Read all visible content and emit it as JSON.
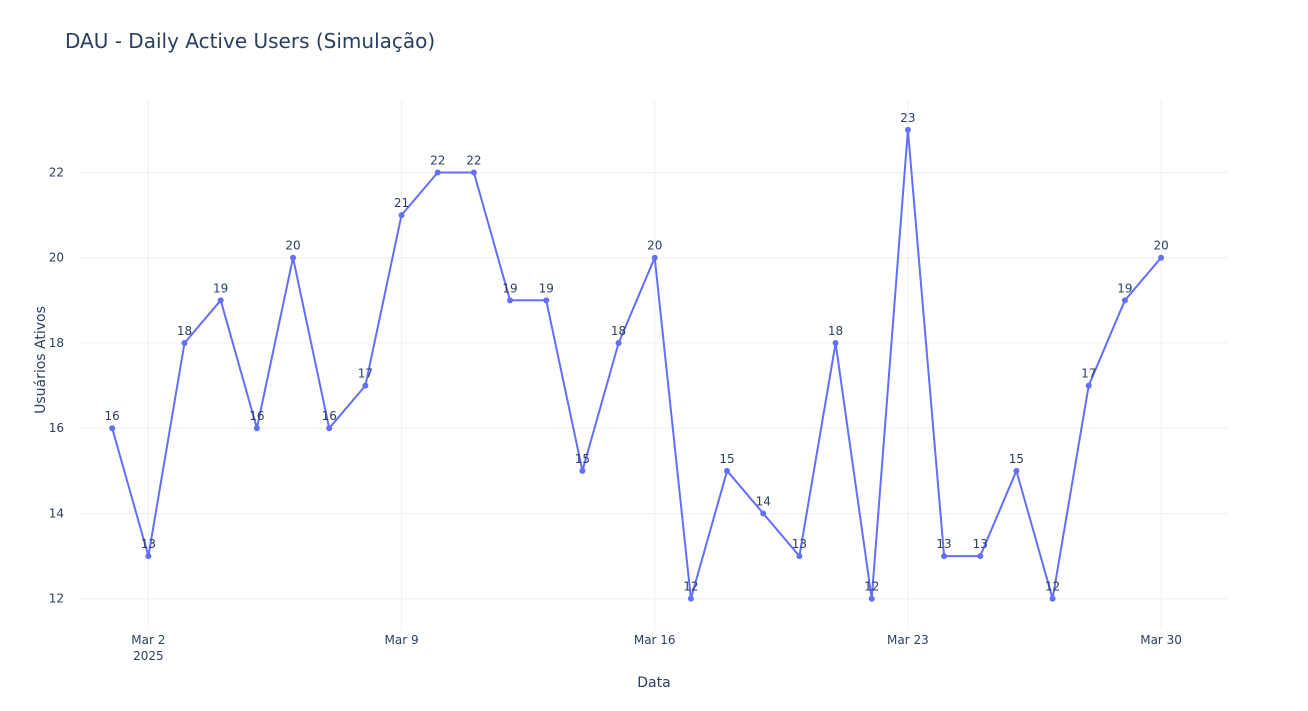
{
  "chart_data": {
    "type": "line",
    "title": "DAU - Daily Active Users (Simulação)",
    "xlabel": "Data",
    "ylabel": "Usuários Ativos",
    "x_start": "2025-03-01",
    "x_ticks": [
      {
        "date": "2025-03-02",
        "label": "Mar 2",
        "sublabel": "2025"
      },
      {
        "date": "2025-03-09",
        "label": "Mar 9",
        "sublabel": ""
      },
      {
        "date": "2025-03-16",
        "label": "Mar 16",
        "sublabel": ""
      },
      {
        "date": "2025-03-23",
        "label": "Mar 23",
        "sublabel": ""
      },
      {
        "date": "2025-03-30",
        "label": "Mar 30",
        "sublabel": ""
      }
    ],
    "y_ticks": [
      12,
      14,
      16,
      18,
      20,
      22
    ],
    "xlim": [
      "2025-02-28",
      "2025-03-31"
    ],
    "ylim": [
      11.5,
      23.7
    ],
    "grid": true,
    "line_color": "#636efa",
    "series": [
      {
        "x": [
          "2025-03-01",
          "2025-03-02",
          "2025-03-03",
          "2025-03-04",
          "2025-03-05",
          "2025-03-06",
          "2025-03-07",
          "2025-03-08",
          "2025-03-09",
          "2025-03-10",
          "2025-03-11",
          "2025-03-12",
          "2025-03-13",
          "2025-03-14",
          "2025-03-15",
          "2025-03-16",
          "2025-03-17",
          "2025-03-18",
          "2025-03-19",
          "2025-03-20",
          "2025-03-21",
          "2025-03-22",
          "2025-03-23",
          "2025-03-24",
          "2025-03-25",
          "2025-03-26",
          "2025-03-27",
          "2025-03-28",
          "2025-03-29",
          "2025-03-30"
        ],
        "values": [
          16,
          13,
          18,
          19,
          16,
          20,
          16,
          17,
          21,
          22,
          22,
          19,
          19,
          15,
          18,
          20,
          12,
          15,
          14,
          13,
          18,
          12,
          23,
          13,
          13,
          15,
          12,
          17,
          19,
          20
        ]
      }
    ]
  }
}
